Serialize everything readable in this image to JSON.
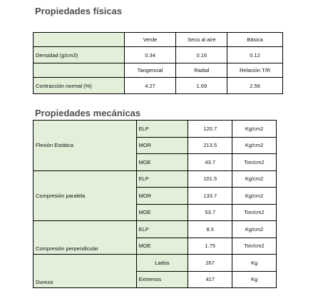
{
  "physical": {
    "title": "Propiedades físicas",
    "header1": [
      "Verde",
      "Seco al aire",
      "Básica"
    ],
    "density": {
      "label": "Densidad (g/cm3)",
      "values": [
        "0.34",
        "0.16",
        "0.12"
      ]
    },
    "header2": [
      "Tangencial",
      "Radial",
      "Relación T/R"
    ],
    "shrinkage": {
      "label": "Contracción normal (%)",
      "values": [
        "4.27",
        "1.69",
        "2.56"
      ]
    }
  },
  "mechanical": {
    "title": "Propiedades mecánicas",
    "groups": [
      {
        "label": "Flexión Estática",
        "rows": [
          {
            "param": "ELP",
            "value": "120.7",
            "unit": "Kg/cm2"
          },
          {
            "param": "MOR",
            "value": "213.5",
            "unit": "Kg/cm2"
          },
          {
            "param": "MOE",
            "value": "43.7",
            "unit": "Ton/cm2"
          }
        ]
      },
      {
        "label": "Compresión paralela",
        "rows": [
          {
            "param": "ELP",
            "value": "101.5",
            "unit": "Kg/cm2"
          },
          {
            "param": "MOR",
            "value": "133.7",
            "unit": "Kg/cm2"
          },
          {
            "param": "MOE",
            "value": "53.7",
            "unit": "Ton/cm2"
          }
        ]
      },
      {
        "label": "Compresión perpendicular",
        "rows": [
          {
            "param": "ELP",
            "value": "8.5",
            "unit": "Kg/cm2"
          },
          {
            "param": "MOE",
            "value": "1.75",
            "unit": "Ton/cm2"
          }
        ]
      },
      {
        "label": "Dureza",
        "rows": [
          {
            "param": "Lados",
            "value": "267",
            "unit": "Kg"
          },
          {
            "param": "Extremos",
            "value": "417",
            "unit": "Kg"
          }
        ]
      }
    ]
  },
  "colors": {
    "label_fill": "#e3efd9",
    "border": "#000000",
    "heading": "#4e4e4e"
  }
}
